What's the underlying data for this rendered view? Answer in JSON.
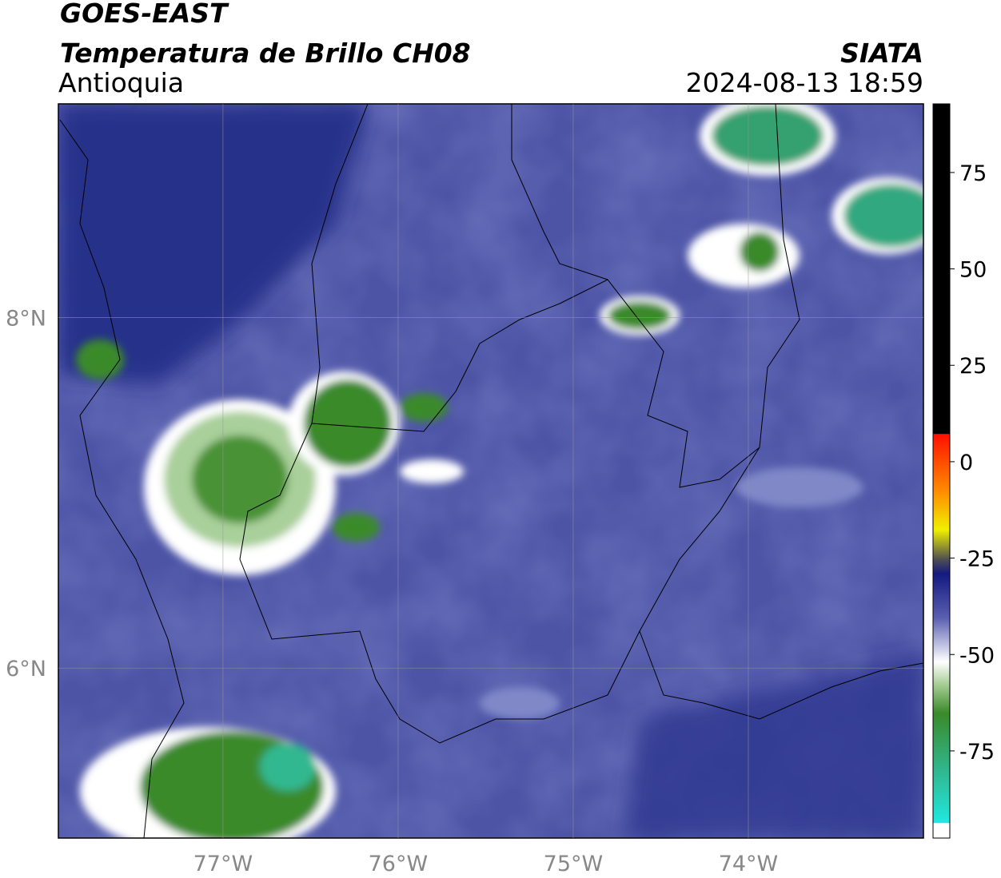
{
  "header": {
    "title": "GOES-EAST",
    "subtitle": "Temperatura de Brillo CH08",
    "region": "Antioquia",
    "source": "SIATA",
    "timestamp": "2024-08-13 18:59"
  },
  "map": {
    "lon_range": [
      -77.94,
      -73.0
    ],
    "lat_range": [
      5.03,
      9.22
    ],
    "lon_ticks": [
      {
        "value": -77,
        "label": "77°W"
      },
      {
        "value": -76,
        "label": "76°W"
      },
      {
        "value": -75,
        "label": "75°W"
      },
      {
        "value": -74,
        "label": "74°W"
      }
    ],
    "lat_ticks": [
      {
        "value": 8,
        "label": "8°N"
      },
      {
        "value": 6,
        "label": "6°N"
      }
    ],
    "grid": true
  },
  "colorbar": {
    "range": [
      -97.6,
      92.8
    ],
    "ticks": [
      75,
      50,
      25,
      0,
      -25,
      -50,
      -75
    ]
  }
}
